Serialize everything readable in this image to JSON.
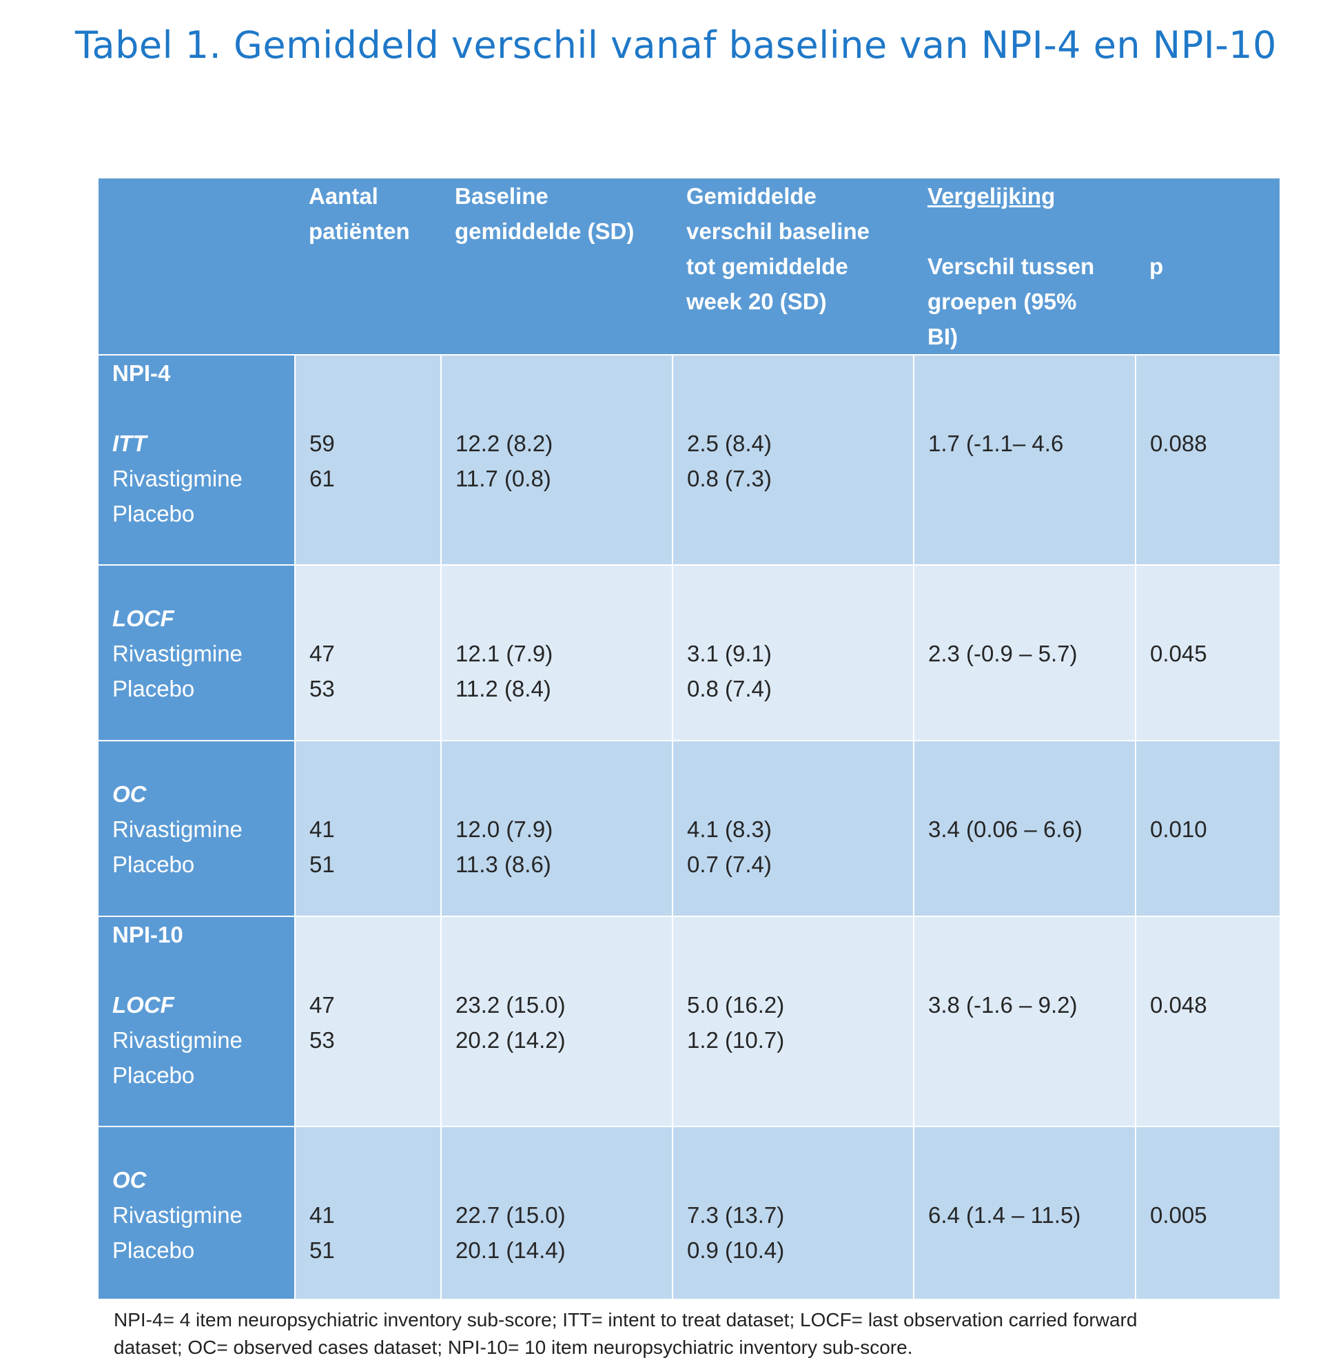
{
  "title": "Tabel 1. Gemiddeld verschil vanaf baseline van NPI-4 en NPI-10",
  "table": {
    "headers": {
      "col2": [
        "Aantal",
        "patiënten"
      ],
      "col3": [
        "Baseline",
        "gemiddelde (SD)"
      ],
      "col4": [
        "Gemiddelde",
        "verschil baseline",
        "tot gemiddelde",
        "week 20 (SD)"
      ],
      "vergelijking": "Vergelijking",
      "col5": [
        "Verschil tussen",
        "groepen (95%",
        "BI)"
      ],
      "col6": "p"
    },
    "rows": [
      {
        "group": "NPI-4",
        "dataset": "ITT",
        "treatments": [
          "Rivastigmine",
          "Placebo"
        ],
        "n": [
          "59",
          "61"
        ],
        "baseline": [
          "12.2 (8.2)",
          "11.7 (0.8)"
        ],
        "change": [
          "2.5 (8.4)",
          "0.8 (7.3)"
        ],
        "diff": "1.7 (-1.1– 4.6",
        "p": "0.088"
      },
      {
        "group": "",
        "dataset": "LOCF",
        "treatments": [
          "Rivastigmine",
          "Placebo"
        ],
        "n": [
          "47",
          "53"
        ],
        "baseline": [
          "12.1 (7.9)",
          "11.2 (8.4)"
        ],
        "change": [
          "3.1 (9.1)",
          "0.8 (7.4)"
        ],
        "diff": "2.3 (-0.9 – 5.7)",
        "p": "0.045"
      },
      {
        "group": "",
        "dataset": "OC",
        "treatments": [
          "Rivastigmine",
          "Placebo"
        ],
        "n": [
          "41",
          "51"
        ],
        "baseline": [
          "12.0 (7.9)",
          "11.3 (8.6)"
        ],
        "change": [
          "4.1 (8.3)",
          "0.7 (7.4)"
        ],
        "diff": "3.4 (0.06 – 6.6)",
        "p": "0.010"
      },
      {
        "group": "NPI-10",
        "dataset": "LOCF",
        "treatments": [
          "Rivastigmine",
          "Placebo"
        ],
        "n": [
          "47",
          "53"
        ],
        "baseline": [
          "23.2 (15.0)",
          "20.2 (14.2)"
        ],
        "change": [
          "5.0 (16.2)",
          "1.2 (10.7)"
        ],
        "diff": "3.8 (-1.6 – 9.2)",
        "p": "0.048"
      },
      {
        "group": "",
        "dataset": "OC",
        "treatments": [
          "Rivastigmine",
          "Placebo"
        ],
        "n": [
          "41",
          "51"
        ],
        "baseline": [
          "22.7 (15.0)",
          "20.1 (14.4)"
        ],
        "change": [
          "7.3 (13.7)",
          "0.9 (10.4)"
        ],
        "diff": "6.4 (1.4 – 11.5)",
        "p": "0.005"
      }
    ]
  },
  "footnote": [
    "NPI-4= 4 item neuropsychiatric inventory sub-score; ITT= intent to treat dataset; LOCF= last observation carried forward",
    "dataset; OC= observed cases dataset; NPI-10= 10 item neuropsychiatric inventory sub-score."
  ],
  "colors": {
    "title": "#1f78c8",
    "header": "#5b9bd5",
    "row_dark": "#bdd7ee",
    "row_light": "#deebf7"
  }
}
